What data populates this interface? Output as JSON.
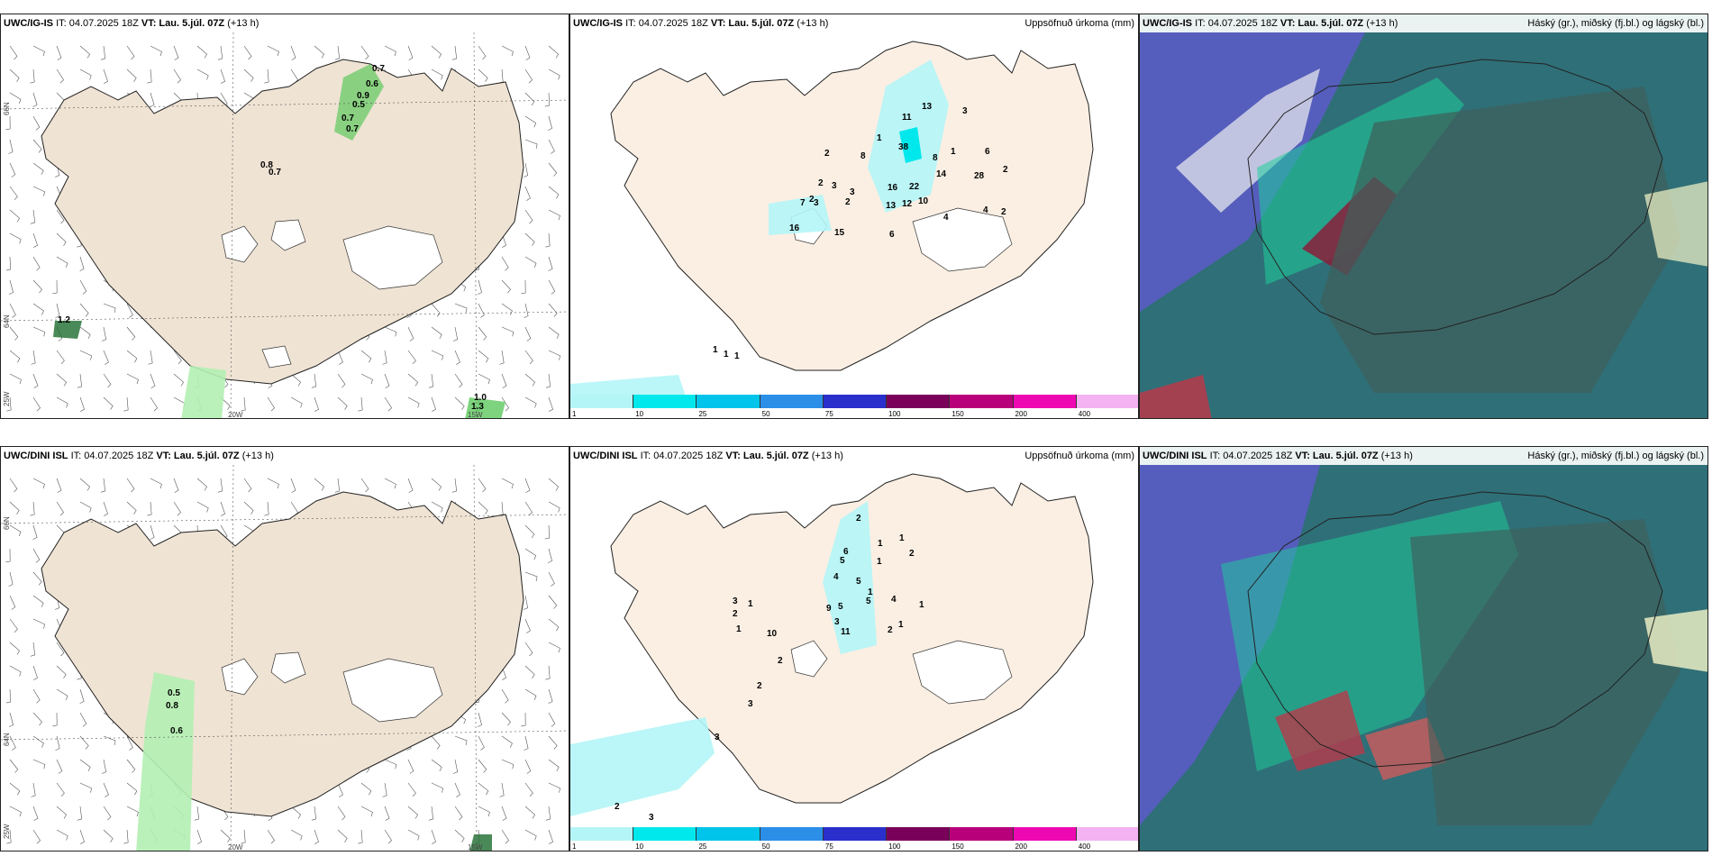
{
  "panels": {
    "top_wind": {
      "model": "UWC/IG-IS",
      "it": "IT: 04.07.2025 18Z",
      "vt": "VT: Lau. 5.júl. 07Z",
      "lead": "(+13 h)",
      "title_right": ""
    },
    "top_precip": {
      "model": "UWC/IG-IS",
      "it": "IT: 04.07.2025 18Z",
      "vt": "VT: Lau. 5.júl. 07Z",
      "lead": "(+13 h)",
      "title_right": "Uppsöfnuð úrkoma (mm)"
    },
    "top_cloud": {
      "model": "UWC/IG-IS",
      "it": "IT: 04.07.2025 18Z",
      "vt": "VT: Lau. 5.júl. 07Z",
      "lead": "(+13 h)",
      "title_right": "Háský (gr.), miðský (fj.bl.) og lágský (bl.)"
    },
    "bot_wind": {
      "model": "UWC/DINI ISL",
      "it": "IT: 04.07.2025 18Z",
      "vt": "VT: Lau. 5.júl. 07Z",
      "lead": "(+13 h)",
      "title_right": ""
    },
    "bot_precip": {
      "model": "UWC/DINI ISL",
      "it": "IT: 04.07.2025 18Z",
      "vt": "VT: Lau. 5.júl. 07Z",
      "lead": "(+13 h)",
      "title_right": "Uppsöfnuð úrkoma (mm)"
    },
    "bot_cloud": {
      "model": "UWC/DINI ISL",
      "it": "IT: 04.07.2025 18Z",
      "vt": "VT: Lau. 5.júl. 07Z",
      "lead": "(+13 h)",
      "title_right": "Háský (gr.), miðský (fj.bl.) og lágský (bl.)"
    }
  },
  "grid_labels": {
    "lat66": "66N",
    "lat64": "64N",
    "lon20": "20W",
    "lon15": "15W",
    "lon25": "25W"
  },
  "colorbar": {
    "ticks": [
      "1",
      "10",
      "25",
      "50",
      "75",
      "100",
      "150",
      "200",
      "400"
    ],
    "colors": [
      "#b4f5f7",
      "#00e8ec",
      "#00c4ea",
      "#2b8fe8",
      "#2a2fcc",
      "#7a005a",
      "#b8007a",
      "#ee08b2",
      "#f4b2f2"
    ]
  },
  "colors": {
    "land": "#efe3d4",
    "land_precip": "#fbefe3",
    "light_green": "#b2f0b2",
    "green": "#5ec95e",
    "dark_green": "#1d6b2e"
  },
  "top_wind_values": [
    "0.7",
    "0.6",
    "0.9",
    "0.5",
    "0.7",
    "0.7",
    "0.8",
    "0.7",
    "1.2",
    "1.0",
    "1.3"
  ],
  "bot_wind_values": [
    "0.5",
    "0.8",
    "0.6"
  ],
  "top_precip_values": [
    "13",
    "11",
    "3",
    "1",
    "38",
    "2",
    "8",
    "6",
    "1",
    "8",
    "28",
    "2",
    "2",
    "3",
    "2",
    "16",
    "22",
    "14",
    "3",
    "7",
    "3",
    "2",
    "13",
    "12",
    "10",
    "4",
    "4",
    "2",
    "16",
    "15",
    "6",
    "1",
    "1",
    "1"
  ],
  "bot_precip_values": [
    "2",
    "1",
    "6",
    "1",
    "2",
    "5",
    "1",
    "4",
    "5",
    "1",
    "3",
    "1",
    "9",
    "5",
    "5",
    "4",
    "1",
    "2",
    "3",
    "11",
    "2",
    "1",
    "1",
    "10",
    "2",
    "2",
    "3",
    "3",
    "2",
    "3"
  ]
}
